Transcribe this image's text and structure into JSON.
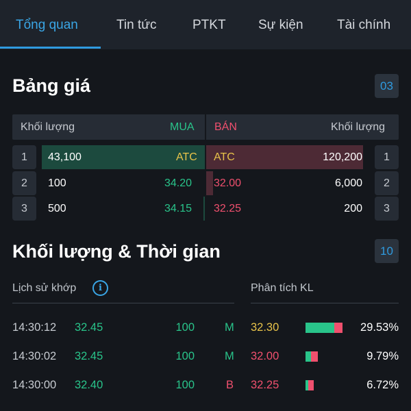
{
  "tabs": [
    {
      "label": "Tổng quan",
      "active": true
    },
    {
      "label": "Tin tức",
      "active": false
    },
    {
      "label": "PTKT",
      "active": false
    },
    {
      "label": "Sự kiện",
      "active": false
    },
    {
      "label": "Tài chính",
      "active": false
    }
  ],
  "price_board": {
    "title": "Bảng giá",
    "badge": "03",
    "header": {
      "buy_volume": "Khối lượng",
      "buy": "MUA",
      "sell": "BÁN",
      "sell_volume": "Khối lượng"
    },
    "rows": [
      {
        "index": "1",
        "buy_volume": "43,100",
        "buy_price": "ATC",
        "sell_price": "ATC",
        "sell_volume": "120,200"
      },
      {
        "index": "2",
        "buy_volume": "100",
        "buy_price": "34.20",
        "sell_price": "32.00",
        "sell_volume": "6,000"
      },
      {
        "index": "3",
        "buy_volume": "500",
        "buy_price": "34.15",
        "sell_price": "32.25",
        "sell_volume": "200"
      }
    ]
  },
  "volume_time": {
    "title": "Khối lượng & Thời gian",
    "badge": "10",
    "history_label": "Lịch sử khớp",
    "analysis_label": "Phân tích KL",
    "trades": [
      {
        "time": "14:30:12",
        "price": "32.45",
        "volume": "100",
        "side": "M",
        "kl_price": "32.30",
        "kl_percent": "29.53%",
        "kl_buy_share": 0.78
      },
      {
        "time": "14:30:02",
        "price": "32.45",
        "volume": "100",
        "side": "M",
        "kl_price": "32.00",
        "kl_percent": "9.79%",
        "kl_buy_share": 0.45
      },
      {
        "time": "14:30:00",
        "price": "32.40",
        "volume": "100",
        "side": "B",
        "kl_price": "32.25",
        "kl_percent": "6.72%",
        "kl_buy_share": 0.35
      }
    ]
  },
  "colors": {
    "accent": "#2f9be0",
    "buy_green": "#29c48a",
    "sell_red": "#f0506e",
    "ref_yellow": "#e8c34a",
    "background": "#14171c"
  }
}
